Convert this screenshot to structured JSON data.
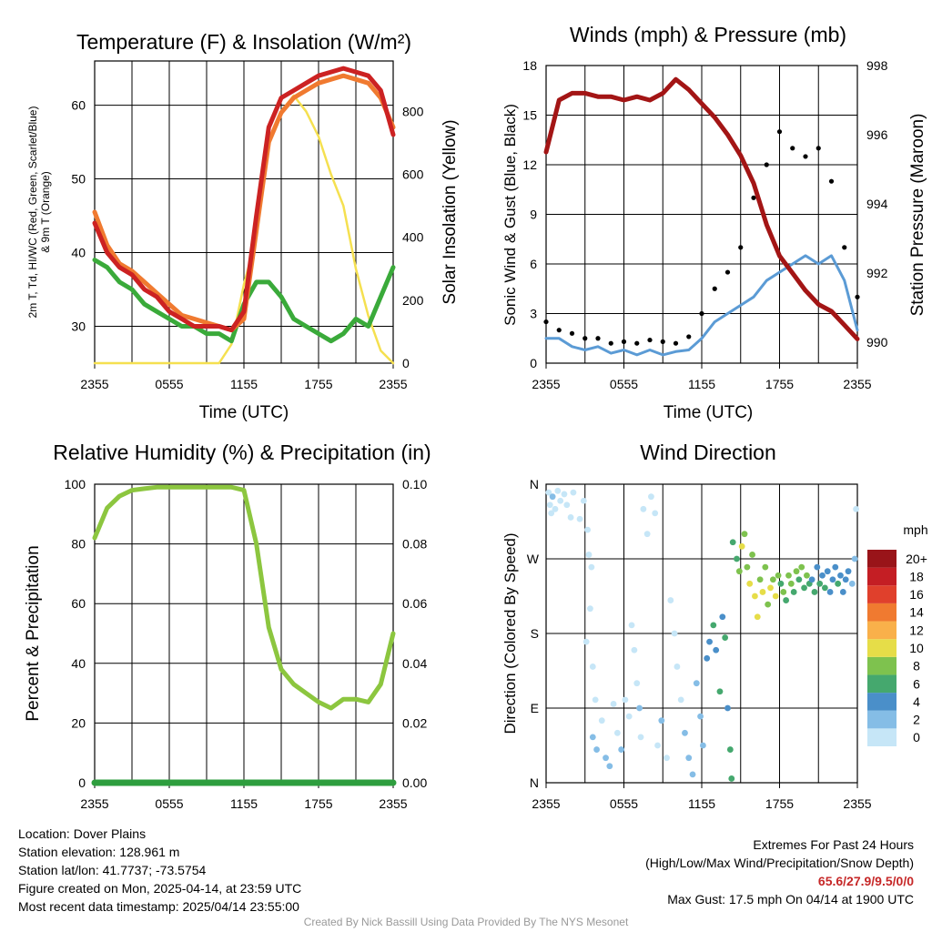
{
  "charts_block": {
    "temperature": {
      "title": "Temperature (F) & Insolation (W/m²)",
      "ylabel_left_line1": "2m T, Td, HI/WC (Red, Green, Scarlet/Blue)",
      "ylabel_left_line2": "& 9m T (Orange)",
      "ylabel_right": "Solar Insolation (Yellow)",
      "xlabel": "Time (UTC)"
    },
    "wind": {
      "title": "Winds (mph) & Pressure (mb)",
      "ylabel_left": "Sonic Wind & Gust (Blue, Black)",
      "ylabel_right": "Station Pressure (Maroon)",
      "xlabel": "Time (UTC)"
    },
    "humidity": {
      "title": "Relative Humidity (%) & Precipitation (in)",
      "ylabel_left": "Percent & Precipitation"
    },
    "direction": {
      "title": "Wind Direction",
      "ylabel_left": "Direction (Colored By Speed)",
      "colorbar_title": "mph"
    }
  },
  "x_ticks": [
    "2355",
    "0555",
    "1155",
    "1755",
    "2355"
  ],
  "colors": {
    "temp_red": "#cc2222",
    "temp_orange": "#f07a30",
    "dewpoint_green": "#3aaa3a",
    "insolation_yellow": "#f5e050",
    "wind_blue": "#5b9bd5",
    "gust_black": "#000000",
    "pressure_maroon": "#a31515",
    "rh_green": "#8cc63f",
    "precip_green": "#2e9e3e"
  },
  "chart_data": [
    {
      "type": "line",
      "name": "temperature_insolation",
      "x_labels": [
        "2355",
        "0555",
        "1155",
        "1755",
        "2355"
      ],
      "x_hours_since_start": [
        0,
        1,
        2,
        3,
        4,
        5,
        6,
        7,
        8,
        9,
        10,
        11,
        12,
        13,
        14,
        15,
        16,
        17,
        18,
        19,
        20,
        21,
        22,
        23,
        24
      ],
      "series": [
        {
          "name": "2m T",
          "axis": "left",
          "values": [
            44,
            40,
            38,
            37,
            35,
            34,
            32,
            31,
            30,
            30,
            30,
            29.5,
            32,
            45,
            57,
            61,
            62,
            63,
            64,
            64.5,
            65,
            64.5,
            64,
            62,
            56
          ]
        },
        {
          "name": "9m T",
          "axis": "left",
          "values": [
            45.5,
            41,
            38.5,
            37.5,
            36,
            34.5,
            33,
            31.5,
            31,
            30.5,
            30,
            29.5,
            31,
            43,
            55,
            59,
            61,
            62,
            63,
            63.5,
            64,
            63.5,
            63,
            61,
            57
          ]
        },
        {
          "name": "Td",
          "axis": "left",
          "values": [
            39,
            38,
            36,
            35,
            33,
            32,
            31,
            30,
            30,
            29,
            29,
            28,
            33,
            36,
            36,
            34,
            31,
            30,
            29,
            28,
            29,
            31,
            30,
            34,
            38
          ]
        }
      ],
      "insolation": {
        "axis": "right",
        "values": [
          0,
          0,
          0,
          0,
          0,
          0,
          0,
          0,
          0,
          0,
          0,
          60,
          250,
          400,
          700,
          800,
          850,
          800,
          720,
          600,
          500,
          300,
          150,
          40,
          0
        ]
      },
      "left_ylim": [
        25,
        66
      ],
      "left_ticks": [
        30,
        40,
        50,
        60
      ],
      "right_ylim": [
        0,
        960
      ],
      "right_ticks": [
        0,
        200,
        400,
        600,
        800
      ]
    },
    {
      "type": "line",
      "name": "winds_pressure",
      "x_labels": [
        "2355",
        "0555",
        "1155",
        "1755",
        "2355"
      ],
      "x_hours_since_start": [
        0,
        1,
        2,
        3,
        4,
        5,
        6,
        7,
        8,
        9,
        10,
        11,
        12,
        13,
        14,
        15,
        16,
        17,
        18,
        19,
        20,
        21,
        22,
        23,
        24
      ],
      "series": [
        {
          "name": "Sonic Wind",
          "axis": "left",
          "values": [
            1.5,
            1.5,
            1,
            0.8,
            1,
            0.6,
            0.8,
            0.5,
            0.8,
            0.5,
            0.7,
            0.8,
            1.5,
            2.5,
            3,
            3.5,
            4,
            5,
            5.5,
            6,
            6.5,
            6,
            6.5,
            5,
            2
          ]
        },
        {
          "name": "Gust",
          "axis": "left",
          "values": [
            2.5,
            2,
            1.8,
            1.5,
            1.5,
            1.2,
            1.3,
            1.2,
            1.4,
            1.3,
            1.2,
            1.6,
            3,
            4.5,
            5.5,
            7,
            10,
            12,
            14,
            13,
            12.5,
            13,
            11,
            7,
            4
          ]
        },
        {
          "name": "Station Pressure",
          "axis": "right",
          "values": [
            995.5,
            997,
            997.2,
            997.2,
            997.1,
            997.1,
            997,
            997.1,
            997,
            997.2,
            997.6,
            997.3,
            996.9,
            996.5,
            996,
            995.4,
            994.6,
            993.4,
            992.5,
            992,
            991.5,
            991.1,
            990.9,
            990.5,
            990.1
          ]
        }
      ],
      "left_ylim": [
        0,
        18
      ],
      "left_ticks": [
        0,
        3,
        6,
        9,
        12,
        15,
        18
      ],
      "right_ylim": [
        989.4,
        998
      ],
      "right_ticks": [
        990,
        992,
        994,
        996,
        998
      ]
    },
    {
      "type": "line",
      "name": "humidity_precip",
      "x_labels": [
        "2355",
        "0555",
        "1155",
        "1755",
        "2355"
      ],
      "x_hours_since_start": [
        0,
        1,
        2,
        3,
        4,
        5,
        6,
        7,
        8,
        9,
        10,
        11,
        12,
        13,
        14,
        15,
        16,
        17,
        18,
        19,
        20,
        21,
        22,
        23,
        24
      ],
      "series": [
        {
          "name": "Relative Humidity",
          "axis": "left",
          "values": [
            82,
            92,
            96,
            98,
            98.5,
            99,
            99,
            99,
            99,
            99,
            99,
            99,
            98,
            80,
            52,
            38,
            33,
            30,
            27,
            25,
            28,
            28,
            27,
            33,
            50
          ]
        },
        {
          "name": "Precipitation",
          "axis": "right",
          "values": [
            0,
            0,
            0,
            0,
            0,
            0,
            0,
            0,
            0,
            0,
            0,
            0,
            0,
            0,
            0,
            0,
            0,
            0,
            0,
            0,
            0,
            0,
            0,
            0,
            0
          ]
        }
      ],
      "left_ylim": [
        0,
        100
      ],
      "left_ticks": [
        0,
        20,
        40,
        60,
        80,
        100
      ],
      "right_ylim": [
        0,
        0.1
      ],
      "right_ticks": [
        "0.00",
        "0.02",
        "0.04",
        "0.06",
        "0.08",
        "0.10"
      ]
    },
    {
      "type": "scatter",
      "name": "wind_direction",
      "x_labels": [
        "2355",
        "0555",
        "1155",
        "1755",
        "2355"
      ],
      "y_ticks": [
        "N",
        "E",
        "S",
        "W",
        "N"
      ],
      "y_range_degrees": [
        0,
        360
      ],
      "points": [
        [
          0.2,
          350,
          0
        ],
        [
          0.3,
          335,
          0
        ],
        [
          0.5,
          345,
          1
        ],
        [
          0.7,
          330,
          0
        ],
        [
          0.9,
          352,
          0
        ],
        [
          1.1,
          340,
          0
        ],
        [
          1.4,
          348,
          0
        ],
        [
          0.4,
          325,
          0
        ],
        [
          1.6,
          335,
          0
        ],
        [
          1.9,
          320,
          0
        ],
        [
          2.1,
          350,
          0
        ],
        [
          2.6,
          318,
          0
        ],
        [
          2.9,
          340,
          0
        ],
        [
          3.2,
          305,
          0
        ],
        [
          3.3,
          275,
          0
        ],
        [
          3.5,
          260,
          0
        ],
        [
          3.4,
          210,
          0
        ],
        [
          3.1,
          170,
          0
        ],
        [
          3.6,
          140,
          0
        ],
        [
          3.8,
          100,
          0
        ],
        [
          3.6,
          55,
          1
        ],
        [
          3.9,
          40,
          1
        ],
        [
          4.3,
          75,
          0
        ],
        [
          4.6,
          30,
          1
        ],
        [
          4.9,
          20,
          1
        ],
        [
          5.2,
          95,
          0
        ],
        [
          5.5,
          60,
          0
        ],
        [
          5.8,
          40,
          1
        ],
        [
          6.1,
          100,
          0
        ],
        [
          6.4,
          80,
          0
        ],
        [
          6.6,
          190,
          0
        ],
        [
          6.8,
          160,
          0
        ],
        [
          7.0,
          120,
          0
        ],
        [
          7.2,
          90,
          1
        ],
        [
          7.3,
          55,
          0
        ],
        [
          7.5,
          330,
          0
        ],
        [
          7.8,
          300,
          0
        ],
        [
          8.1,
          345,
          0
        ],
        [
          8.4,
          325,
          0
        ],
        [
          8.6,
          45,
          0
        ],
        [
          8.9,
          75,
          1
        ],
        [
          9.3,
          30,
          0
        ],
        [
          9.6,
          220,
          0
        ],
        [
          9.9,
          180,
          0
        ],
        [
          10.1,
          140,
          0
        ],
        [
          10.4,
          100,
          0
        ],
        [
          10.7,
          60,
          1
        ],
        [
          11.0,
          30,
          1
        ],
        [
          11.3,
          10,
          1
        ],
        [
          11.6,
          120,
          1
        ],
        [
          11.9,
          80,
          1
        ],
        [
          12.1,
          45,
          1
        ],
        [
          12.4,
          150,
          2
        ],
        [
          12.6,
          170,
          2
        ],
        [
          12.9,
          190,
          3
        ],
        [
          13.1,
          160,
          2
        ],
        [
          13.4,
          110,
          3
        ],
        [
          13.6,
          200,
          2
        ],
        [
          13.8,
          175,
          3
        ],
        [
          14.0,
          90,
          2
        ],
        [
          14.2,
          40,
          3
        ],
        [
          14.3,
          5,
          3
        ],
        [
          14.4,
          290,
          3
        ],
        [
          14.7,
          270,
          3
        ],
        [
          14.9,
          255,
          4
        ],
        [
          15.1,
          285,
          5
        ],
        [
          15.3,
          300,
          4
        ],
        [
          15.5,
          260,
          4
        ],
        [
          15.7,
          240,
          5
        ],
        [
          15.9,
          275,
          4
        ],
        [
          16.1,
          225,
          5
        ],
        [
          16.3,
          200,
          5
        ],
        [
          16.5,
          245,
          4
        ],
        [
          16.7,
          230,
          5
        ],
        [
          16.9,
          260,
          4
        ],
        [
          17.1,
          215,
          4
        ],
        [
          17.3,
          235,
          5
        ],
        [
          17.5,
          245,
          4
        ],
        [
          17.7,
          225,
          5
        ],
        [
          17.9,
          250,
          4
        ],
        [
          18.1,
          240,
          3
        ],
        [
          18.3,
          230,
          4
        ],
        [
          18.5,
          220,
          3
        ],
        [
          18.7,
          250,
          4
        ],
        [
          18.9,
          240,
          4
        ],
        [
          19.1,
          230,
          3
        ],
        [
          19.3,
          255,
          4
        ],
        [
          19.5,
          245,
          3
        ],
        [
          19.7,
          260,
          4
        ],
        [
          19.9,
          235,
          3
        ],
        [
          20.1,
          250,
          4
        ],
        [
          20.3,
          240,
          3
        ],
        [
          20.5,
          245,
          2
        ],
        [
          20.7,
          230,
          3
        ],
        [
          20.9,
          260,
          2
        ],
        [
          21.1,
          240,
          3
        ],
        [
          21.3,
          250,
          2
        ],
        [
          21.5,
          235,
          3
        ],
        [
          21.7,
          255,
          2
        ],
        [
          21.9,
          230,
          2
        ],
        [
          22.1,
          245,
          2
        ],
        [
          22.3,
          260,
          2
        ],
        [
          22.5,
          240,
          3
        ],
        [
          22.7,
          250,
          2
        ],
        [
          22.9,
          230,
          2
        ],
        [
          23.1,
          245,
          2
        ],
        [
          23.3,
          255,
          2
        ],
        [
          23.6,
          240,
          1
        ],
        [
          23.8,
          270,
          1
        ],
        [
          23.9,
          330,
          0
        ]
      ],
      "colorbar_labels": [
        "0",
        "2",
        "4",
        "6",
        "8",
        "10",
        "12",
        "14",
        "16",
        "18",
        "20+"
      ],
      "colorbar_colors": [
        "#c6e6f7",
        "#85bde6",
        "#4a8fc9",
        "#45a86e",
        "#7ec24e",
        "#e6dd48",
        "#f9b04a",
        "#f07a30",
        "#e0402c",
        "#c41e24",
        "#991419"
      ]
    }
  ],
  "info_left": {
    "location": "Location: Dover Plains",
    "elevation": "Station elevation: 128.961 m",
    "latlon": "Station lat/lon: 41.7737; -73.5754",
    "created": "Figure created on Mon, 2025-04-14, at 23:59 UTC",
    "recent": "Most recent data timestamp: 2025/04/14 23:55:00"
  },
  "info_right": {
    "title": "Extremes For Past 24 Hours",
    "subtitle": "(High/Low/Max Wind/Precipitation/Snow Depth)",
    "values": "65.6/27.9/9.5/0/0",
    "gust": "Max Gust: 17.5 mph On 04/14 at 1900 UTC"
  },
  "credit": "Created By Nick Bassill Using Data Provided By The NYS Mesonet"
}
